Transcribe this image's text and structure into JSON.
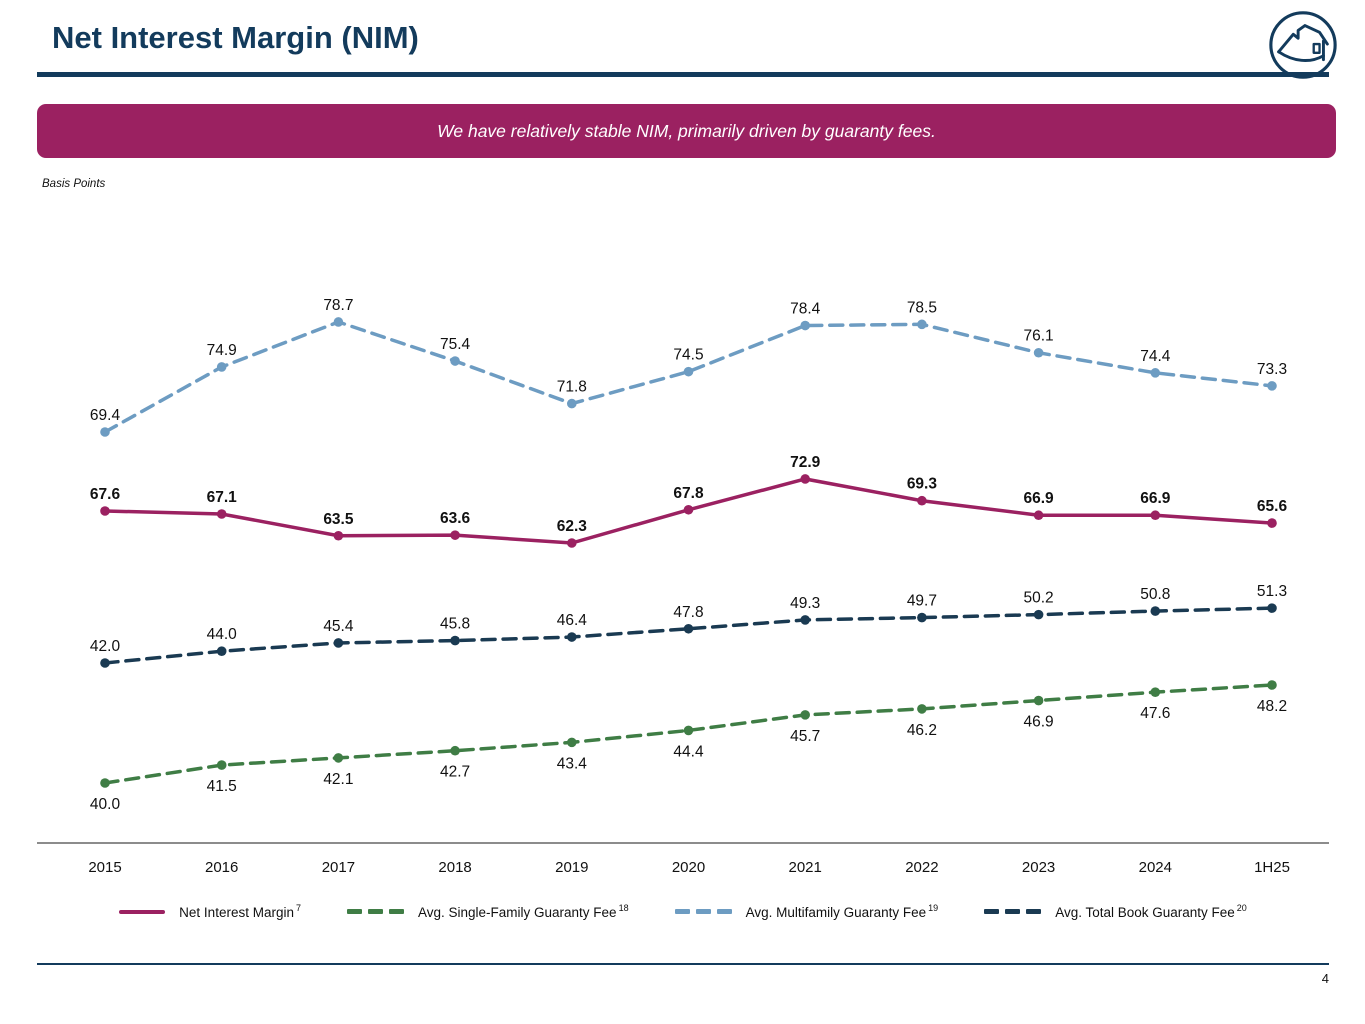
{
  "header": {
    "title": "Net Interest Margin (NIM)",
    "logo_icon": "fannie-mae-house-logo"
  },
  "banner": {
    "text": "We have relatively stable NIM, primarily driven by guaranty fees."
  },
  "axis_note": "Basis Points",
  "chart_data": {
    "type": "line",
    "title": "Net Interest Margin (NIM)",
    "ylabel": "Basis Points",
    "xlabel": "",
    "grid": false,
    "legend_position": "bottom",
    "categories": [
      "2015",
      "2016",
      "2017",
      "2018",
      "2019",
      "2020",
      "2021",
      "2022",
      "2023",
      "2024",
      "1H25"
    ],
    "series": [
      {
        "name": "Net Interest Margin",
        "footnote": "7",
        "style": "solid",
        "color": "#9B2161",
        "values": [
          67.6,
          67.1,
          63.5,
          63.6,
          62.3,
          67.8,
          72.9,
          69.3,
          66.9,
          66.9,
          65.6
        ]
      },
      {
        "name": "Avg. Single-Family Guaranty Fee",
        "footnote": "18",
        "style": "dashed",
        "color": "#3F7D45",
        "values": [
          40.0,
          41.5,
          42.1,
          42.7,
          43.4,
          44.4,
          45.7,
          46.2,
          46.9,
          47.6,
          48.2
        ]
      },
      {
        "name": "Avg. Multifamily Guaranty Fee",
        "footnote": "19",
        "style": "dashed",
        "color": "#6D9CC2",
        "values": [
          69.4,
          74.9,
          78.7,
          75.4,
          71.8,
          74.5,
          78.4,
          78.5,
          76.1,
          74.4,
          73.3
        ]
      },
      {
        "name": "Avg. Total Book Guaranty Fee",
        "footnote": "20",
        "style": "dashed",
        "color": "#1A3A52",
        "values": [
          42.0,
          44.0,
          45.4,
          45.8,
          46.4,
          47.8,
          49.3,
          49.7,
          50.2,
          50.8,
          51.3
        ]
      }
    ]
  },
  "colors": {
    "navy": "#133B5C",
    "banner_magenta": "#9B2161",
    "axis_gray": "#8C8C8C",
    "label_black": "#111111"
  },
  "footer": {
    "page_number": "4"
  }
}
